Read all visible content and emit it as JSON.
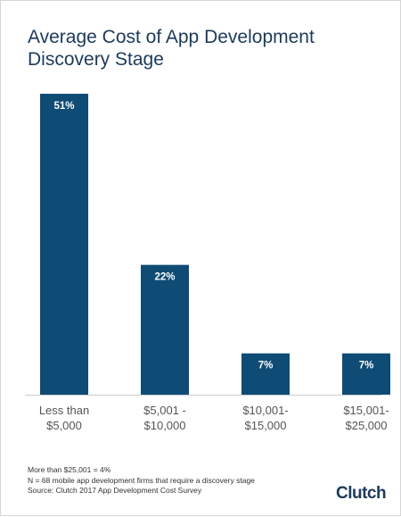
{
  "chart_data": {
    "type": "bar",
    "title_lines": [
      "Average Cost of App Development",
      "Discovery Stage"
    ],
    "categories": [
      [
        "Less than",
        "$5,000"
      ],
      [
        "$5,001 -",
        "$10,000"
      ],
      [
        "$10,001-",
        "$15,000"
      ],
      [
        "$15,001-",
        "$25,000"
      ]
    ],
    "values": [
      51,
      22,
      7,
      7
    ],
    "data_labels": [
      "51%",
      "22%",
      "7%",
      "7%"
    ],
    "unit": "%",
    "ylim": [
      0,
      51
    ],
    "grid": false,
    "bar_color": "#0f4c75",
    "axis_color": "#cccccc"
  },
  "footnotes": [
    "More than $25,001 = 4%",
    "N = 68 mobile app development firms that require a discovery stage",
    "Source: Clutch 2017 App Development Cost Survey"
  ],
  "brand": {
    "logo_text": "Clutch",
    "color": "#1c3a5b"
  }
}
